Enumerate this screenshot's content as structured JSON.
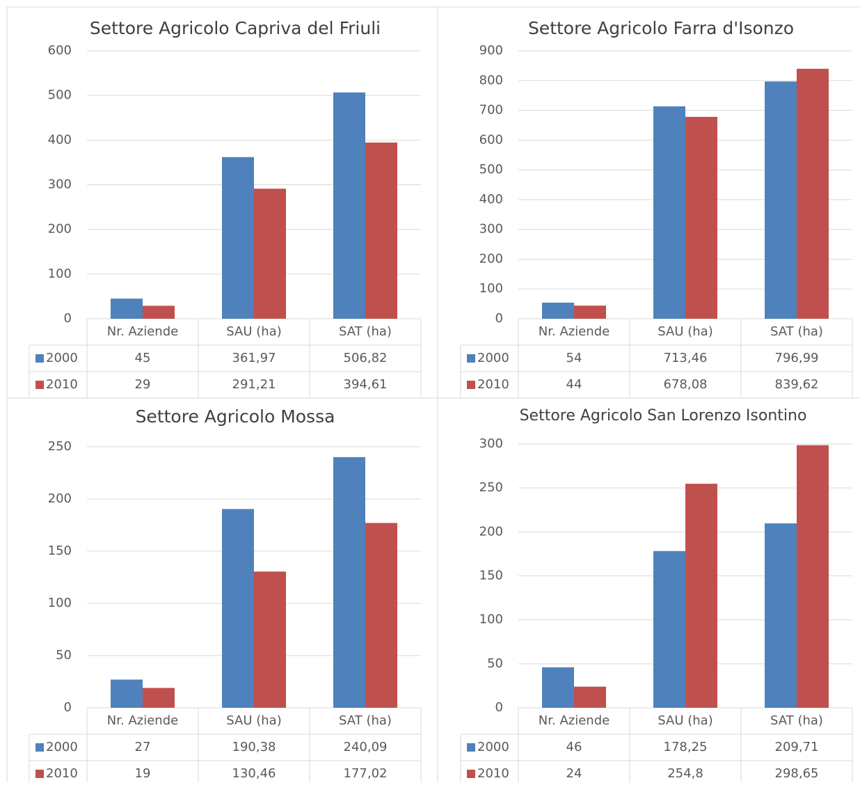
{
  "chart_data": [
    {
      "type": "bar",
      "title": "Settore Agricolo Capriva del Friuli",
      "categories": [
        "Nr. Aziende",
        "SAU (ha)",
        "SAT (ha)"
      ],
      "series": [
        {
          "name": "2000",
          "color": "#4f81bd",
          "values": [
            45,
            361.97,
            506.82
          ],
          "value_labels": [
            "45",
            "361,97",
            "506,82"
          ]
        },
        {
          "name": "2010",
          "color": "#c0504d",
          "values": [
            29,
            291.21,
            394.61
          ],
          "value_labels": [
            "29",
            "291,21",
            "394,61"
          ]
        }
      ],
      "ylim": [
        0,
        600
      ],
      "yticks": [
        0,
        100,
        200,
        300,
        400,
        500,
        600
      ],
      "grid": true
    },
    {
      "type": "bar",
      "title": "Settore Agricolo Farra d'Isonzo",
      "categories": [
        "Nr. Aziende",
        "SAU (ha)",
        "SAT (ha)"
      ],
      "series": [
        {
          "name": "2000",
          "color": "#4f81bd",
          "values": [
            54,
            713.46,
            796.99
          ],
          "value_labels": [
            "54",
            "713,46",
            "796,99"
          ]
        },
        {
          "name": "2010",
          "color": "#c0504d",
          "values": [
            44,
            678.08,
            839.62
          ],
          "value_labels": [
            "44",
            "678,08",
            "839,62"
          ]
        }
      ],
      "ylim": [
        0,
        900
      ],
      "yticks": [
        0,
        100,
        200,
        300,
        400,
        500,
        600,
        700,
        800,
        900
      ],
      "grid": true
    },
    {
      "type": "bar",
      "title": "Settore Agricolo Mossa",
      "categories": [
        "Nr. Aziende",
        "SAU (ha)",
        "SAT (ha)"
      ],
      "series": [
        {
          "name": "2000",
          "color": "#4f81bd",
          "values": [
            27,
            190.38,
            240.09
          ],
          "value_labels": [
            "27",
            "190,38",
            "240,09"
          ]
        },
        {
          "name": "2010",
          "color": "#c0504d",
          "values": [
            19,
            130.46,
            177.02
          ],
          "value_labels": [
            "19",
            "130,46",
            "177,02"
          ]
        }
      ],
      "ylim": [
        0,
        250
      ],
      "yticks": [
        0,
        50,
        100,
        150,
        200,
        250
      ],
      "grid": true
    },
    {
      "type": "bar",
      "title": "Settore Agricolo San Lorenzo Isontino",
      "categories": [
        "Nr. Aziende",
        "SAU (ha)",
        "SAT (ha)"
      ],
      "series": [
        {
          "name": "2000",
          "color": "#4f81bd",
          "values": [
            46,
            178.25,
            209.71
          ],
          "value_labels": [
            "46",
            "178,25",
            "209,71"
          ]
        },
        {
          "name": "2010",
          "color": "#c0504d",
          "values": [
            24,
            254.8,
            298.65
          ],
          "value_labels": [
            "24",
            "254,8",
            "298,65"
          ]
        }
      ],
      "ylim": [
        0,
        300
      ],
      "yticks": [
        0,
        50,
        100,
        150,
        200,
        250,
        300
      ],
      "grid": true
    }
  ]
}
